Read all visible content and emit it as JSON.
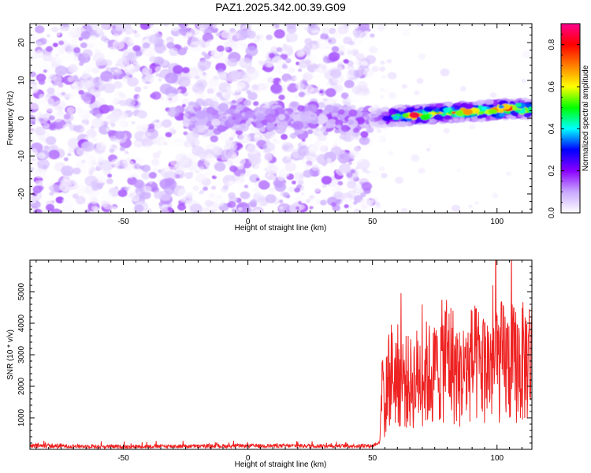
{
  "chart_data": [
    {
      "type": "heatmap",
      "title": "PAZ1.2025.342.00.39.G09",
      "xlabel": "Height of straight line (km)",
      "ylabel": "Frequency (Hz)",
      "xlim": [
        -87.5,
        114
      ],
      "ylim": [
        -25,
        25
      ],
      "xticks": [
        -50,
        0,
        50,
        100
      ],
      "yticks": [
        -20,
        -10,
        0,
        10,
        20
      ],
      "colorbar": {
        "label": "Normalized spectral amplitude",
        "ticks": [
          0.0,
          0.2,
          0.4,
          0.6,
          0.8
        ],
        "range": [
          0,
          0.9
        ],
        "stops": [
          "#ffffff",
          "#c8a8ff",
          "#8a00ff",
          "#0000ff",
          "#00ffff",
          "#00ff00",
          "#ffff00",
          "#ff8000",
          "#ff0000",
          "#ff0090"
        ]
      },
      "signal_ridge": [
        {
          "x": -20,
          "freq": 0.5,
          "amp": 0.1
        },
        {
          "x": 0,
          "freq": 0.5,
          "amp": 0.12
        },
        {
          "x": 25,
          "freq": 0.3,
          "amp": 0.12
        },
        {
          "x": 50,
          "freq": 0.0,
          "amp": 0.15
        },
        {
          "x": 55,
          "freq": 0.3,
          "amp": 0.35
        },
        {
          "x": 65,
          "freq": 0.8,
          "amp": 0.8
        },
        {
          "x": 80,
          "freq": 1.5,
          "amp": 0.75
        },
        {
          "x": 95,
          "freq": 2.0,
          "amp": 0.8
        },
        {
          "x": 105,
          "freq": 2.5,
          "amp": 0.85
        },
        {
          "x": 114,
          "freq": 2.5,
          "amp": 0.7
        }
      ]
    },
    {
      "type": "line",
      "xlabel": "Height of straight line (km)",
      "ylabel": "SNR (10 * v/v)",
      "xlim": [
        -87.5,
        114
      ],
      "ylim": [
        0,
        6000
      ],
      "xticks": [
        -50,
        0,
        50,
        100
      ],
      "yticks": [
        1000,
        2000,
        3000,
        4000,
        5000
      ],
      "color": "#ee2222",
      "series": [
        {
          "name": "SNR",
          "x": [
            -87.5,
            -80,
            -70,
            -60,
            -50,
            -40,
            -30,
            -20,
            -10,
            0,
            10,
            20,
            30,
            40,
            50,
            53,
            54,
            55,
            56,
            58,
            60,
            65,
            70,
            75,
            80,
            85,
            90,
            95,
            100,
            105,
            110,
            114
          ],
          "values": [
            100,
            110,
            100,
            90,
            85,
            95,
            100,
            100,
            105,
            110,
            110,
            115,
            110,
            110,
            110,
            250,
            3500,
            1200,
            2500,
            2700,
            2600,
            2300,
            2700,
            2600,
            3400,
            2500,
            3000,
            2900,
            3100,
            3000,
            3000,
            3300
          ]
        }
      ]
    }
  ]
}
